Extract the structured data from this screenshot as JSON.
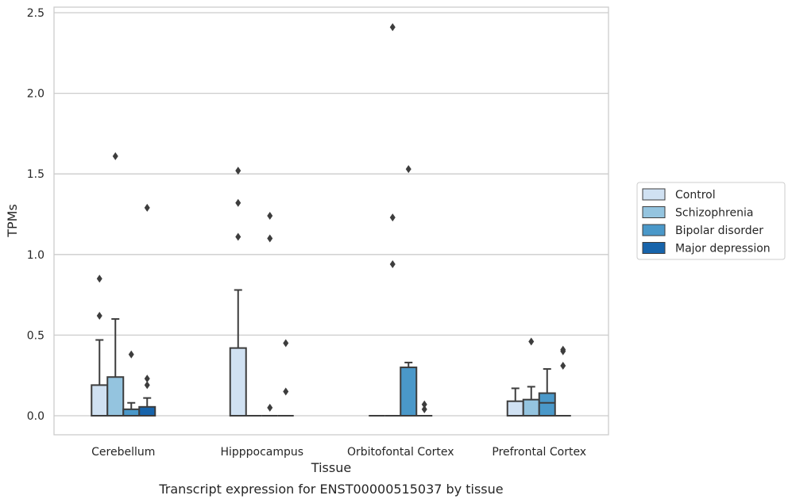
{
  "chart_data": {
    "type": "box",
    "title": "Transcript expression for ENST00000515037 by tissue",
    "xlabel": "Tissue",
    "ylabel": "TPMs",
    "ylim": [
      -0.12,
      2.55
    ],
    "yticks": [
      "0.0",
      "0.5",
      "1.0",
      "1.5",
      "2.0",
      "2.5"
    ],
    "grid": true,
    "legend_position": "right",
    "categories": [
      "Cerebellum",
      "Hipppocampus",
      "Orbitofontal Cortex",
      "Prefrontal Cortex"
    ],
    "series": [
      {
        "name": "Control",
        "color": "#d0e1f2"
      },
      {
        "name": "Schizophrenia",
        "color": "#94c4df"
      },
      {
        "name": "Bipolar disorder",
        "color": "#4a98c9"
      },
      {
        "name": "Major depression",
        "color": "#1764ab"
      }
    ],
    "boxes": [
      {
        "category": "Cerebellum",
        "series": "Control",
        "q1": 0.0,
        "median": 0.0,
        "q3": 0.19,
        "whisker_low": 0.0,
        "whisker_high": 0.47,
        "outliers": [
          0.62,
          0.85
        ]
      },
      {
        "category": "Cerebellum",
        "series": "Schizophrenia",
        "q1": 0.0,
        "median": 0.0,
        "q3": 0.24,
        "whisker_low": 0.0,
        "whisker_high": 0.6,
        "outliers": [
          1.61
        ]
      },
      {
        "category": "Cerebellum",
        "series": "Bipolar disorder",
        "q1": 0.0,
        "median": 0.0,
        "q3": 0.04,
        "whisker_low": 0.0,
        "whisker_high": 0.08,
        "outliers": [
          0.38
        ]
      },
      {
        "category": "Cerebellum",
        "series": "Major depression",
        "q1": 0.0,
        "median": 0.0,
        "q3": 0.055,
        "whisker_low": 0.0,
        "whisker_high": 0.11,
        "outliers": [
          0.19,
          0.23,
          1.29
        ]
      },
      {
        "category": "Hipppocampus",
        "series": "Control",
        "q1": 0.0,
        "median": 0.0,
        "q3": 0.42,
        "whisker_low": 0.0,
        "whisker_high": 0.78,
        "outliers": [
          1.11,
          1.32,
          1.52
        ]
      },
      {
        "category": "Hipppocampus",
        "series": "Schizophrenia",
        "q1": 0.0,
        "median": 0.0,
        "q3": 0.0,
        "whisker_low": 0.0,
        "whisker_high": 0.0,
        "outliers": []
      },
      {
        "category": "Hipppocampus",
        "series": "Bipolar disorder",
        "q1": 0.0,
        "median": 0.0,
        "q3": 0.0,
        "whisker_low": 0.0,
        "whisker_high": 0.0,
        "outliers": [
          0.05,
          1.1,
          1.24
        ]
      },
      {
        "category": "Hipppocampus",
        "series": "Major depression",
        "q1": 0.0,
        "median": 0.0,
        "q3": 0.0,
        "whisker_low": 0.0,
        "whisker_high": 0.0,
        "outliers": [
          0.15,
          0.45
        ]
      },
      {
        "category": "Orbitofontal Cortex",
        "series": "Control",
        "q1": 0.0,
        "median": 0.0,
        "q3": 0.0,
        "whisker_low": 0.0,
        "whisker_high": 0.0,
        "outliers": []
      },
      {
        "category": "Orbitofontal Cortex",
        "series": "Schizophrenia",
        "q1": 0.0,
        "median": 0.0,
        "q3": 0.0,
        "whisker_low": 0.0,
        "whisker_high": 0.0,
        "outliers": [
          0.94,
          1.23,
          2.41
        ]
      },
      {
        "category": "Orbitofontal Cortex",
        "series": "Bipolar disorder",
        "q1": 0.0,
        "median": 0.0,
        "q3": 0.3,
        "whisker_low": 0.0,
        "whisker_high": 0.33,
        "outliers": [
          1.53
        ]
      },
      {
        "category": "Orbitofontal Cortex",
        "series": "Major depression",
        "q1": 0.0,
        "median": 0.0,
        "q3": 0.0,
        "whisker_low": 0.0,
        "whisker_high": 0.0,
        "outliers": [
          0.04,
          0.07
        ]
      },
      {
        "category": "Prefrontal Cortex",
        "series": "Control",
        "q1": 0.0,
        "median": 0.0,
        "q3": 0.09,
        "whisker_low": 0.0,
        "whisker_high": 0.17,
        "outliers": []
      },
      {
        "category": "Prefrontal Cortex",
        "series": "Schizophrenia",
        "q1": 0.0,
        "median": 0.0,
        "q3": 0.1,
        "whisker_low": 0.0,
        "whisker_high": 0.18,
        "outliers": [
          0.46
        ]
      },
      {
        "category": "Prefrontal Cortex",
        "series": "Bipolar disorder",
        "q1": 0.0,
        "median": 0.08,
        "q3": 0.14,
        "whisker_low": 0.0,
        "whisker_high": 0.29,
        "outliers": []
      },
      {
        "category": "Prefrontal Cortex",
        "series": "Major depression",
        "q1": 0.0,
        "median": 0.0,
        "q3": 0.0,
        "whisker_low": 0.0,
        "whisker_high": 0.0,
        "outliers": [
          0.31,
          0.4,
          0.41
        ]
      }
    ]
  }
}
